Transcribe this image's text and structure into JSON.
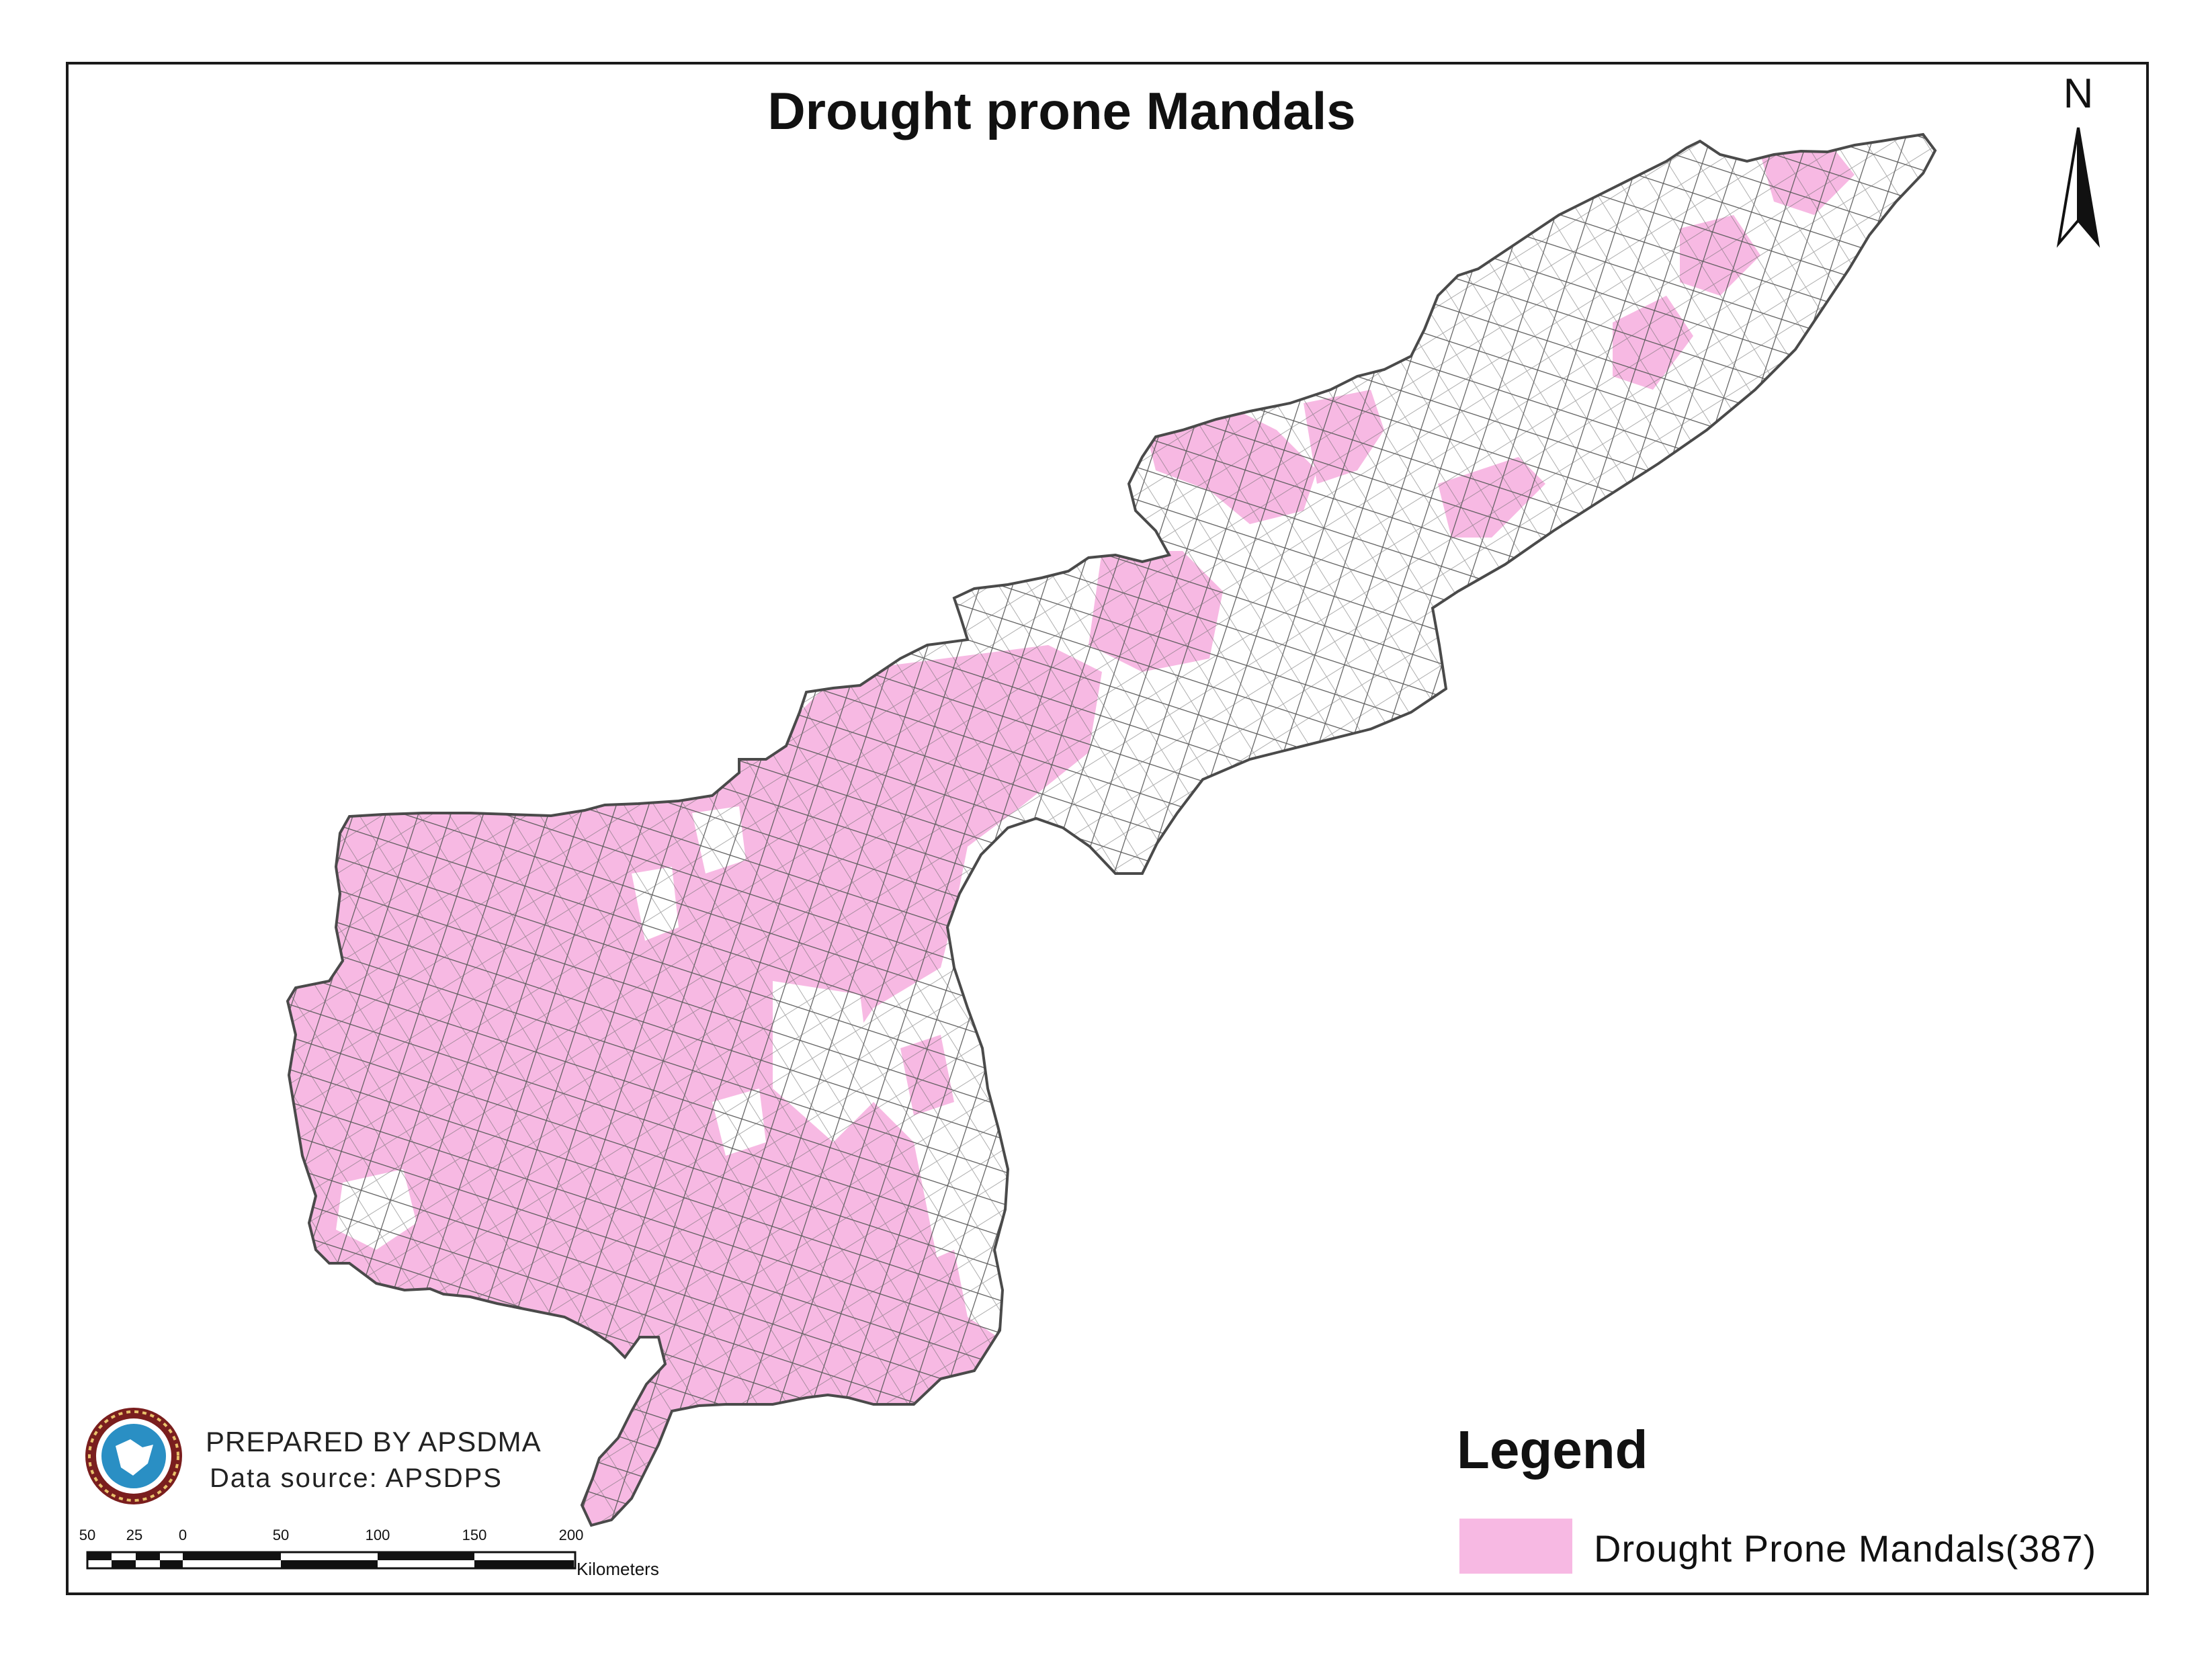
{
  "map": {
    "title": "Drought prone Mandals",
    "north_arrow": "N",
    "credits": {
      "prepared_by": "PREPARED BY APSDMA",
      "data_source": "Data source: APSDPS"
    },
    "legend": {
      "title": "Legend",
      "items": [
        {
          "label": "Drought Prone Mandals(387)",
          "color": "#f7b9e3"
        }
      ]
    },
    "scale_bar": {
      "ticks": [
        "50",
        "25",
        "0",
        "50",
        "100",
        "150",
        "200"
      ],
      "unit": "Kilometers"
    },
    "colors": {
      "drought_prone": "#f7b9e3",
      "other_mandals": "#ffffff",
      "boundary": "#555555"
    }
  }
}
